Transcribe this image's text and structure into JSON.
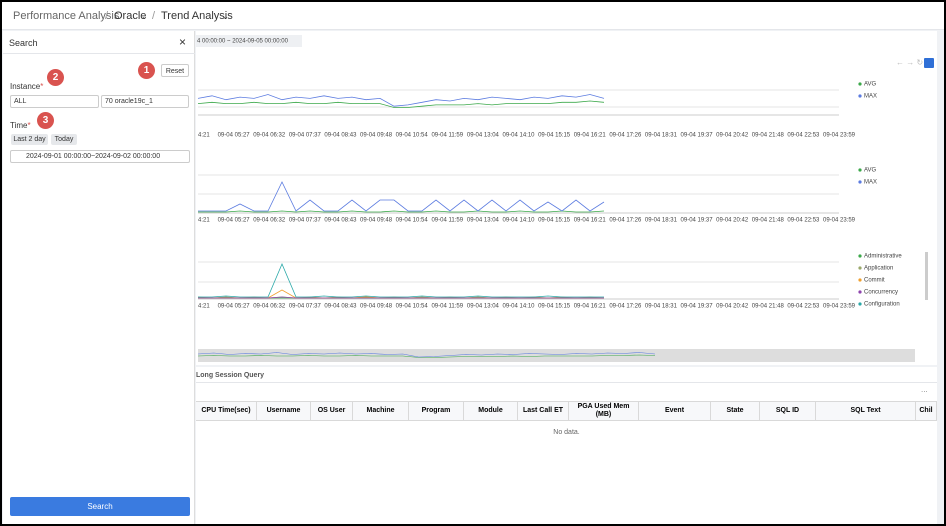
{
  "breadcrumb": [
    "Performance Analysis",
    "Oracle",
    "Trend Analysis"
  ],
  "time_range": "4 00:00:00 ~ 2024-09-05 00:00:00",
  "search_panel": {
    "title": "Search",
    "reset": "Reset",
    "steps": [
      "1",
      "2",
      "3"
    ],
    "instance_label": "Instance",
    "required_mark": "*",
    "instance_group": "ALL",
    "instance": "70 oracle19c_1",
    "time_label": "Time",
    "quick_ranges": [
      "Last 2 day",
      "Today"
    ],
    "date_range": "2024-09-01 00:00:00~2024-09-02 00:00:00",
    "search_button": "Search"
  },
  "chart_data": [
    {
      "type": "line",
      "xticks": [
        "4:21",
        "09-04 05:27",
        "09-04 06:32",
        "09-04 07:37",
        "09-04 08:43",
        "09-04 09:48",
        "09-04 10:54",
        "09-04 11:59",
        "09-04 13:04",
        "09-04 14:10",
        "09-04 15:15",
        "09-04 16:21",
        "09-04 17:26",
        "09-04 18:31",
        "09-04 19:37",
        "09-04 20:42",
        "09-04 21:48",
        "09-04 22:53",
        "09-04 23:59"
      ],
      "series": [
        {
          "name": "AVG",
          "color": "#3ba84a",
          "values": [
            8,
            9,
            8,
            8,
            9,
            8,
            8,
            9,
            8,
            8,
            9,
            8,
            8,
            8,
            5,
            5,
            6,
            7,
            7,
            7,
            8,
            7,
            8,
            8,
            8,
            8,
            9,
            9,
            10,
            9
          ]
        },
        {
          "name": "MAX",
          "color": "#5b7be0",
          "values": [
            12,
            14,
            11,
            13,
            12,
            15,
            11,
            13,
            12,
            14,
            12,
            13,
            11,
            12,
            6,
            7,
            9,
            11,
            10,
            12,
            11,
            13,
            12,
            11,
            13,
            12,
            14,
            13,
            15,
            12
          ]
        }
      ]
    },
    {
      "type": "line",
      "xticks": [
        "4:21",
        "09-04 05:27",
        "09-04 06:32",
        "09-04 07:37",
        "09-04 08:43",
        "09-04 09:48",
        "09-04 10:54",
        "09-04 11:59",
        "09-04 13:04",
        "09-04 14:10",
        "09-04 15:15",
        "09-04 16:21",
        "09-04 17:26",
        "09-04 18:31",
        "09-04 19:37",
        "09-04 20:42",
        "09-04 21:48",
        "09-04 22:53",
        "09-04 23:59"
      ],
      "series": [
        {
          "name": "AVG",
          "color": "#3ba84a",
          "values": [
            0,
            0,
            0,
            1,
            0,
            0,
            1,
            0,
            1,
            0,
            0,
            1,
            0,
            0,
            1,
            0,
            0,
            1,
            0,
            0,
            1,
            0,
            0,
            1,
            0,
            0,
            1,
            0,
            0,
            1
          ]
        },
        {
          "name": "MAX",
          "color": "#5b7be0",
          "values": [
            1,
            1,
            1,
            8,
            1,
            1,
            30,
            1,
            12,
            1,
            1,
            12,
            1,
            12,
            12,
            1,
            1,
            12,
            1,
            12,
            1,
            12,
            1,
            12,
            1,
            10,
            1,
            12,
            1,
            10
          ]
        }
      ]
    },
    {
      "type": "line",
      "xticks": [
        "4:21",
        "09-04 05:27",
        "09-04 06:32",
        "09-04 07:37",
        "09-04 08:43",
        "09-04 09:48",
        "09-04 10:54",
        "09-04 11:59",
        "09-04 13:04",
        "09-04 14:10",
        "09-04 15:15",
        "09-04 16:21",
        "09-04 17:26",
        "09-04 18:31",
        "09-04 19:37",
        "09-04 20:42",
        "09-04 21:48",
        "09-04 22:53",
        "09-04 23:59"
      ],
      "series": [
        {
          "name": "Administrative",
          "color": "#3ba84a",
          "values": [
            0,
            0,
            0,
            0,
            0,
            0,
            0,
            0,
            0,
            0,
            0,
            0,
            0,
            0,
            0,
            0,
            0,
            0,
            0,
            0,
            0,
            0,
            0,
            0,
            0,
            0,
            0,
            0,
            0,
            0
          ]
        },
        {
          "name": "Application",
          "color": "#9aa86a",
          "values": [
            1,
            0,
            1,
            0,
            1,
            0,
            1,
            0,
            1,
            0,
            1,
            0,
            1,
            0,
            1,
            0,
            1,
            0,
            1,
            0,
            1,
            0,
            1,
            0,
            1,
            0,
            1,
            0,
            1,
            0
          ]
        },
        {
          "name": "Commit",
          "color": "#f0a030",
          "values": [
            0,
            0,
            0,
            0,
            0,
            0,
            8,
            0,
            0,
            0,
            0,
            0,
            1,
            0,
            0,
            0,
            0,
            0,
            0,
            0,
            0,
            0,
            0,
            0,
            0,
            0,
            0,
            0,
            0,
            0
          ]
        },
        {
          "name": "Concurrency",
          "color": "#8e44ad",
          "values": [
            0,
            0,
            0,
            0,
            0,
            0,
            1,
            0,
            0,
            0,
            0,
            0,
            0,
            0,
            0,
            0,
            0,
            0,
            0,
            0,
            0,
            0,
            0,
            0,
            0,
            0,
            0,
            0,
            0,
            0
          ]
        },
        {
          "name": "Configuration",
          "color": "#2aa8a8",
          "values": [
            1,
            1,
            2,
            1,
            1,
            1,
            34,
            1,
            1,
            2,
            1,
            1,
            2,
            1,
            1,
            1,
            2,
            1,
            1,
            1,
            2,
            1,
            1,
            1,
            1,
            2,
            1,
            1,
            1,
            1
          ]
        }
      ]
    }
  ],
  "table": {
    "tab": "Long Session Query",
    "more": "...",
    "columns": [
      "CPU Time(sec)",
      "Username",
      "OS User",
      "Machine",
      "Program",
      "Module",
      "Last Call ET",
      "PGA Used Mem (MB)",
      "Event",
      "State",
      "SQL ID",
      "SQL Text",
      "Chil"
    ],
    "empty": "No data."
  }
}
